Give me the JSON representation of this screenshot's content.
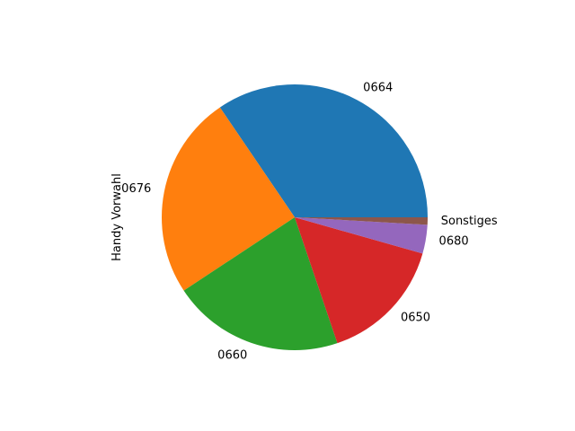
{
  "chart_data": {
    "type": "pie",
    "ylabel": "Handy Vorwahl",
    "start_angle_deg": 0,
    "direction": "counterclockwise",
    "slices": [
      {
        "label": "0664",
        "value": 34.5,
        "color": "#1f77b4"
      },
      {
        "label": "0676",
        "value": 24.8,
        "color": "#ff7f0e"
      },
      {
        "label": "0660",
        "value": 20.9,
        "color": "#2ca02c"
      },
      {
        "label": "0650",
        "value": 15.4,
        "color": "#d62728"
      },
      {
        "label": "0680",
        "value": 3.5,
        "color": "#9467bd"
      },
      {
        "label": "Sonstiges",
        "value": 0.9,
        "color": "#8c564b"
      }
    ]
  }
}
